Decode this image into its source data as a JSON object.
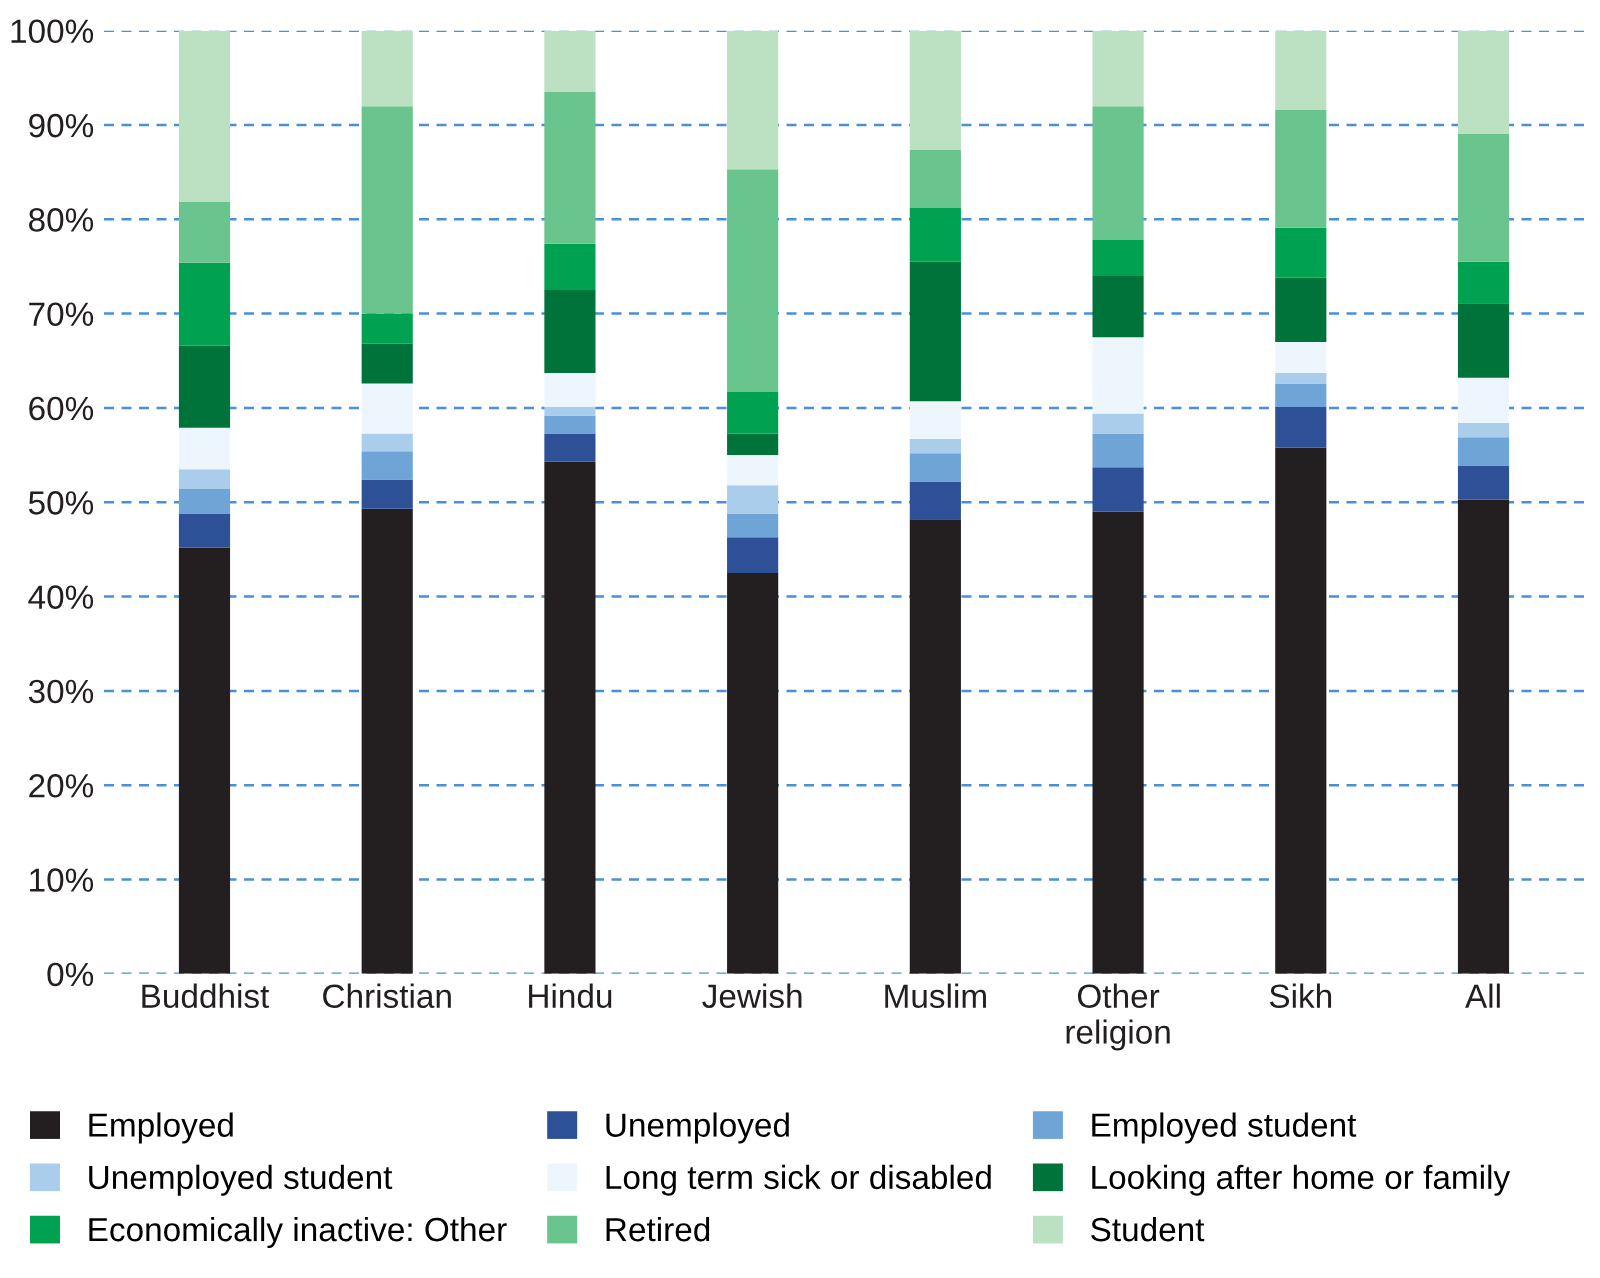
{
  "chart_data": {
    "type": "bar",
    "stacked": true,
    "categories": [
      "Buddhist",
      "Christian",
      "Hindu",
      "Jewish",
      "Muslim",
      "Other\nreligion",
      "Sikh",
      "All"
    ],
    "series": [
      {
        "name": "Employed",
        "color": "#231f20",
        "values": [
          45.2,
          49.3,
          54.3,
          42.5,
          48.2,
          49.0,
          55.8,
          50.3
        ]
      },
      {
        "name": "Unemployed",
        "color": "#2e5097",
        "values": [
          3.6,
          3.1,
          3.0,
          3.8,
          4.0,
          4.7,
          4.3,
          3.6
        ]
      },
      {
        "name": "Employed student",
        "color": "#6fa4d6",
        "values": [
          2.6,
          3.0,
          1.9,
          2.5,
          3.0,
          3.6,
          2.5,
          3.0
        ]
      },
      {
        "name": "Unemployed student",
        "color": "#abcdec",
        "values": [
          2.1,
          1.9,
          0.9,
          3.0,
          1.5,
          2.1,
          1.1,
          1.5
        ]
      },
      {
        "name": "Long term sick or disabled",
        "color": "#eef6fd",
        "values": [
          4.4,
          5.3,
          3.6,
          3.2,
          4.0,
          8.1,
          3.3,
          4.8
        ]
      },
      {
        "name": "Looking after home or family",
        "color": "#00733a",
        "values": [
          8.7,
          4.2,
          8.8,
          2.3,
          14.8,
          6.5,
          6.8,
          7.9
        ]
      },
      {
        "name": "Economically inactive: Other",
        "color": "#00a151",
        "values": [
          8.8,
          3.2,
          4.9,
          4.4,
          5.7,
          3.8,
          5.3,
          4.4
        ]
      },
      {
        "name": "Retired",
        "color": "#6ac48d",
        "values": [
          6.5,
          22.0,
          16.1,
          23.6,
          6.2,
          14.2,
          12.5,
          13.6
        ]
      },
      {
        "name": "Student",
        "color": "#bce1c2",
        "values": [
          18.1,
          8.0,
          6.5,
          14.7,
          12.6,
          8.0,
          8.4,
          10.9
        ]
      }
    ],
    "ylim": [
      0,
      100
    ],
    "yticks": [
      {
        "value": 0,
        "label": "0%"
      },
      {
        "value": 10,
        "label": "10%"
      },
      {
        "value": 20,
        "label": "20%"
      },
      {
        "value": 30,
        "label": "30%"
      },
      {
        "value": 40,
        "label": "40%"
      },
      {
        "value": 50,
        "label": "50%"
      },
      {
        "value": 60,
        "label": "60%"
      },
      {
        "value": 70,
        "label": "70%"
      },
      {
        "value": 80,
        "label": "80%"
      },
      {
        "value": 90,
        "label": "90%"
      },
      {
        "value": 100,
        "label": "100%"
      }
    ],
    "grid": "y",
    "legend": "bottom"
  }
}
